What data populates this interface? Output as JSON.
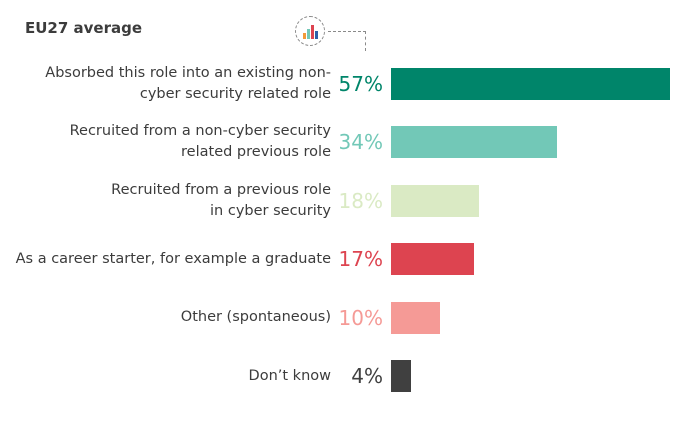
{
  "title": "EU27 average",
  "icon": "bar-chart-icon",
  "chart_data": {
    "type": "bar",
    "orientation": "horizontal",
    "title": "EU27 average",
    "xlim": [
      0,
      57
    ],
    "categories": [
      "Absorbed this role into an existing non-cyber security related role",
      "Recruited from a non-cyber security related previous role",
      "Recruited from a previous role in cyber security",
      "As a career starter, for example a graduate",
      "Other (spontaneous)",
      "Don't know"
    ],
    "label_lines": [
      [
        "Absorbed this role into an existing non-",
        "cyber security related role"
      ],
      [
        "Recruited from a non-cyber security",
        "related previous role"
      ],
      [
        "Recruited from a previous role",
        "in cyber security"
      ],
      [
        "As a career starter, for example a graduate"
      ],
      [
        "Other (spontaneous)"
      ],
      [
        "Don’t know"
      ]
    ],
    "values": [
      57,
      34,
      18,
      17,
      10,
      4
    ],
    "value_labels": [
      "57%",
      "34%",
      "18%",
      "17%",
      "10%",
      "4%"
    ],
    "colors": [
      "#00856a",
      "#72c8b7",
      "#daeac4",
      "#dd4450",
      "#f59a96",
      "#404040"
    ]
  }
}
